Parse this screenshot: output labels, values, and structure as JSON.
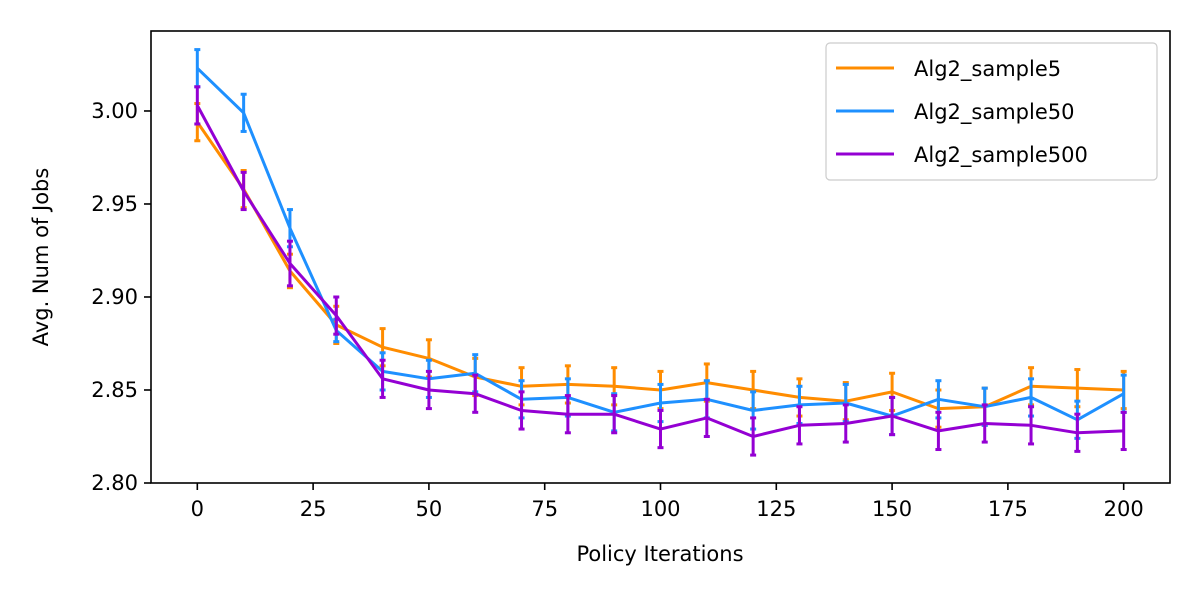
{
  "chart_data": {
    "type": "line",
    "title": "",
    "xlabel": "Policy Iterations",
    "ylabel": "Avg. Num of Jobs",
    "xlim": [
      -10,
      210
    ],
    "ylim": [
      2.8,
      3.043
    ],
    "xticks": [
      0,
      25,
      50,
      75,
      100,
      125,
      150,
      175,
      200
    ],
    "yticks": [
      2.8,
      2.85,
      2.9,
      2.95,
      3.0
    ],
    "xtick_labels": [
      "0",
      "25",
      "50",
      "75",
      "100",
      "125",
      "150",
      "175",
      "200"
    ],
    "ytick_labels": [
      "2.80",
      "2.85",
      "2.90",
      "2.95",
      "3.00"
    ],
    "grid": false,
    "legend_position": "top-right",
    "x": [
      0,
      10,
      20,
      30,
      40,
      50,
      60,
      70,
      80,
      90,
      100,
      110,
      120,
      130,
      140,
      150,
      160,
      170,
      180,
      190,
      200
    ],
    "series": [
      {
        "name": "Alg2_sample5",
        "color": "#ff8c00",
        "values": [
          2.994,
          2.958,
          2.914,
          2.885,
          2.873,
          2.867,
          2.857,
          2.852,
          2.853,
          2.852,
          2.85,
          2.854,
          2.85,
          2.846,
          2.844,
          2.849,
          2.84,
          2.841,
          2.852,
          2.851,
          2.85
        ],
        "error": [
          0.01,
          0.01,
          0.009,
          0.01,
          0.01,
          0.01,
          0.01,
          0.01,
          0.01,
          0.01,
          0.01,
          0.01,
          0.01,
          0.01,
          0.01,
          0.01,
          0.01,
          0.01,
          0.01,
          0.01,
          0.01
        ]
      },
      {
        "name": "Alg2_sample50",
        "color": "#1e90ff",
        "values": [
          3.023,
          2.999,
          2.937,
          2.882,
          2.86,
          2.856,
          2.859,
          2.845,
          2.846,
          2.838,
          2.843,
          2.845,
          2.839,
          2.842,
          2.843,
          2.836,
          2.845,
          2.841,
          2.846,
          2.834,
          2.848
        ],
        "error": [
          0.01,
          0.01,
          0.01,
          0.006,
          0.01,
          0.01,
          0.01,
          0.01,
          0.01,
          0.01,
          0.01,
          0.01,
          0.01,
          0.01,
          0.01,
          0.01,
          0.01,
          0.01,
          0.01,
          0.01,
          0.01
        ]
      },
      {
        "name": "Alg2_sample500",
        "color": "#9400d3",
        "values": [
          3.003,
          2.957,
          2.918,
          2.89,
          2.856,
          2.85,
          2.848,
          2.839,
          2.837,
          2.837,
          2.829,
          2.835,
          2.825,
          2.831,
          2.832,
          2.836,
          2.828,
          2.832,
          2.831,
          2.827,
          2.828
        ],
        "error": [
          0.01,
          0.01,
          0.012,
          0.01,
          0.01,
          0.01,
          0.01,
          0.01,
          0.01,
          0.01,
          0.01,
          0.01,
          0.01,
          0.01,
          0.01,
          0.01,
          0.01,
          0.01,
          0.01,
          0.01,
          0.01
        ]
      }
    ]
  }
}
